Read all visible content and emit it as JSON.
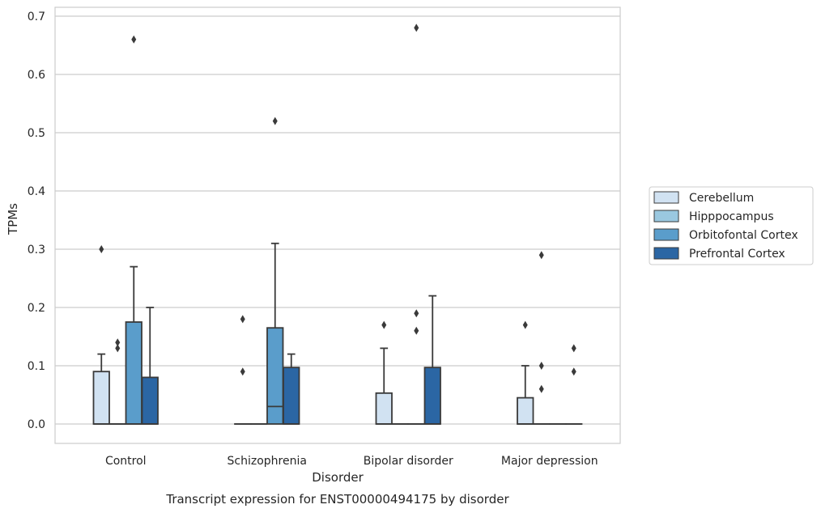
{
  "chart_data": {
    "type": "box",
    "xlabel": "Disorder",
    "ylabel": "TPMs",
    "caption": "Transcript expression for ENST00000494175 by disorder",
    "ylim": [
      -0.033,
      0.715
    ],
    "yticks": [
      0.0,
      0.1,
      0.2,
      0.3,
      0.4,
      0.5,
      0.6,
      0.7
    ],
    "ytick_labels": [
      "0.0",
      "0.1",
      "0.2",
      "0.3",
      "0.4",
      "0.5",
      "0.6",
      "0.7"
    ],
    "grid": true,
    "legend_position": "right",
    "categories": [
      "Control",
      "Schizophrenia",
      "Bipolar disorder",
      "Major depression"
    ],
    "series": [
      {
        "name": "Cerebellum",
        "color": "#d1e2f2",
        "boxes": [
          {
            "whislo": 0.0,
            "q1": 0.0,
            "med": 0.0,
            "q3": 0.09,
            "whishi": 0.12,
            "fliers": [
              0.3
            ]
          },
          {
            "whislo": 0.0,
            "q1": 0.0,
            "med": 0.0,
            "q3": 0.0,
            "whishi": 0.0,
            "fliers": [
              0.09,
              0.18
            ]
          },
          {
            "whislo": 0.0,
            "q1": 0.0,
            "med": 0.0,
            "q3": 0.053,
            "whishi": 0.13,
            "fliers": [
              0.17
            ]
          },
          {
            "whislo": 0.0,
            "q1": 0.0,
            "med": 0.0,
            "q3": 0.045,
            "whishi": 0.1,
            "fliers": [
              0.17
            ]
          }
        ]
      },
      {
        "name": "Hipppocampus",
        "color": "#9ac8e0",
        "boxes": [
          {
            "whislo": 0.0,
            "q1": 0.0,
            "med": 0.0,
            "q3": 0.0,
            "whishi": 0.0,
            "fliers": [
              0.13,
              0.14
            ]
          },
          {
            "whislo": 0.0,
            "q1": 0.0,
            "med": 0.0,
            "q3": 0.0,
            "whishi": 0.0,
            "fliers": []
          },
          {
            "whislo": 0.0,
            "q1": 0.0,
            "med": 0.0,
            "q3": 0.0,
            "whishi": 0.0,
            "fliers": []
          },
          {
            "whislo": 0.0,
            "q1": 0.0,
            "med": 0.0,
            "q3": 0.0,
            "whishi": 0.0,
            "fliers": [
              0.06,
              0.1,
              0.29
            ]
          }
        ]
      },
      {
        "name": "Orbitofontal Cortex",
        "color": "#5a9dcb",
        "boxes": [
          {
            "whislo": 0.0,
            "q1": 0.0,
            "med": 0.0,
            "q3": 0.175,
            "whishi": 0.27,
            "fliers": [
              0.66
            ]
          },
          {
            "whislo": 0.0,
            "q1": 0.0,
            "med": 0.03,
            "q3": 0.165,
            "whishi": 0.31,
            "fliers": [
              0.52
            ]
          },
          {
            "whislo": 0.0,
            "q1": 0.0,
            "med": 0.0,
            "q3": 0.0,
            "whishi": 0.0,
            "fliers": [
              0.16,
              0.19,
              0.68
            ]
          },
          {
            "whislo": 0.0,
            "q1": 0.0,
            "med": 0.0,
            "q3": 0.0,
            "whishi": 0.0,
            "fliers": []
          }
        ]
      },
      {
        "name": "Prefrontal Cortex",
        "color": "#2b66a4",
        "boxes": [
          {
            "whislo": 0.0,
            "q1": 0.0,
            "med": 0.0,
            "q3": 0.08,
            "whishi": 0.2,
            "fliers": []
          },
          {
            "whislo": 0.0,
            "q1": 0.0,
            "med": 0.0,
            "q3": 0.097,
            "whishi": 0.12,
            "fliers": []
          },
          {
            "whislo": 0.0,
            "q1": 0.0,
            "med": 0.0,
            "q3": 0.097,
            "whishi": 0.22,
            "fliers": []
          },
          {
            "whislo": 0.0,
            "q1": 0.0,
            "med": 0.0,
            "q3": 0.0,
            "whishi": 0.0,
            "fliers": [
              0.09,
              0.13
            ]
          }
        ]
      }
    ]
  }
}
